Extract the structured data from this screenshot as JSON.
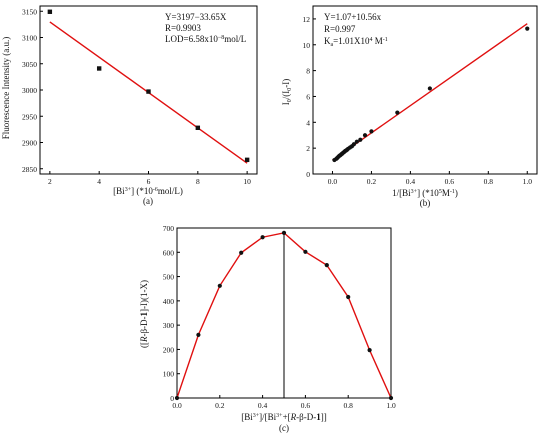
{
  "chart_data": [
    {
      "panel": "(a)",
      "type": "scatter",
      "xlabel": "[Bi3+] (*10-6mol/L)",
      "ylabel": "Fluorescence Intensity (a.u.)",
      "xlim": [
        1.6,
        10.4
      ],
      "ylim": [
        2840,
        3160
      ],
      "xticks": [
        2,
        4,
        6,
        8,
        10
      ],
      "yticks": [
        2850,
        2900,
        2950,
        3000,
        3050,
        3100,
        3150
      ],
      "xticklabels": [
        "2",
        "4",
        "6",
        "8",
        "10"
      ],
      "yticklabels": [
        "2850",
        "2900",
        "2950",
        "3000",
        "3050",
        "3100",
        "3150"
      ],
      "x": [
        2,
        4,
        6,
        8,
        10
      ],
      "y": [
        3149,
        3041,
        2997,
        2928,
        2867
      ],
      "fit": {
        "x": [
          2,
          10
        ],
        "y": [
          3129.7,
          2860.5
        ]
      },
      "annotations": [
        "Y=3197−33.65X",
        "R=0.9903",
        "LOD=6.58x10−8mol/L"
      ],
      "grid": false
    },
    {
      "panel": "(b)",
      "type": "scatter",
      "xlabel": "1/[Bi3+] (*105M-1)",
      "ylabel": "I0/(I0-I)",
      "xlim": [
        -0.1,
        1.05
      ],
      "ylim": [
        0,
        13
      ],
      "xticks": [
        0.0,
        0.2,
        0.4,
        0.6,
        0.8,
        1.0
      ],
      "yticks": [
        0,
        2,
        4,
        6,
        8,
        10,
        12
      ],
      "xticklabels": [
        "0.0",
        "0.2",
        "0.4",
        "0.6",
        "0.8",
        "1.0"
      ],
      "yticklabels": [
        "0",
        "2",
        "4",
        "6",
        "8",
        "10",
        "12"
      ],
      "x": [
        0.01,
        0.02,
        0.025,
        0.03,
        0.035,
        0.04,
        0.045,
        0.05,
        0.055,
        0.06,
        0.065,
        0.07,
        0.075,
        0.08,
        0.09,
        0.1,
        0.11,
        0.125,
        0.143,
        0.167,
        0.2,
        0.333,
        0.5,
        1.0
      ],
      "y": [
        1.08,
        1.18,
        1.25,
        1.33,
        1.4,
        1.45,
        1.52,
        1.58,
        1.65,
        1.7,
        1.78,
        1.82,
        1.88,
        1.95,
        2.05,
        2.15,
        2.3,
        2.5,
        2.65,
        3.0,
        3.3,
        4.75,
        6.62,
        11.25
      ],
      "fit": {
        "x": [
          0.0,
          1.0
        ],
        "y": [
          1.07,
          11.63
        ]
      },
      "annotations": [
        "Y=1.07+10.56x",
        "R=0.997",
        "Ka=1.01X104 M-1"
      ],
      "grid": false
    },
    {
      "panel": "(c)",
      "type": "line",
      "xlabel": "[Bi3+]/[Bi3++[R-β-D-1]]",
      "ylabel": "([R-β-D-1]-I)(1-X)",
      "xlim": [
        0.0,
        1.0
      ],
      "ylim": [
        0,
        700
      ],
      "xticks": [
        0.0,
        0.2,
        0.4,
        0.6,
        0.8,
        1.0
      ],
      "yticks": [
        0,
        100,
        200,
        300,
        400,
        500,
        600,
        700
      ],
      "xticklabels": [
        "0.0",
        "0.2",
        "0.4",
        "0.6",
        "0.8",
        "1.0"
      ],
      "yticklabels": [
        "0",
        "100",
        "200",
        "300",
        "400",
        "500",
        "600",
        "700"
      ],
      "x": [
        0.0,
        0.1,
        0.2,
        0.3,
        0.4,
        0.5,
        0.6,
        0.7,
        0.8,
        0.9,
        1.0
      ],
      "y": [
        0,
        260,
        462,
        598,
        662,
        680,
        602,
        547,
        416,
        197,
        0
      ],
      "vline_x": 0.5,
      "grid": false
    }
  ]
}
